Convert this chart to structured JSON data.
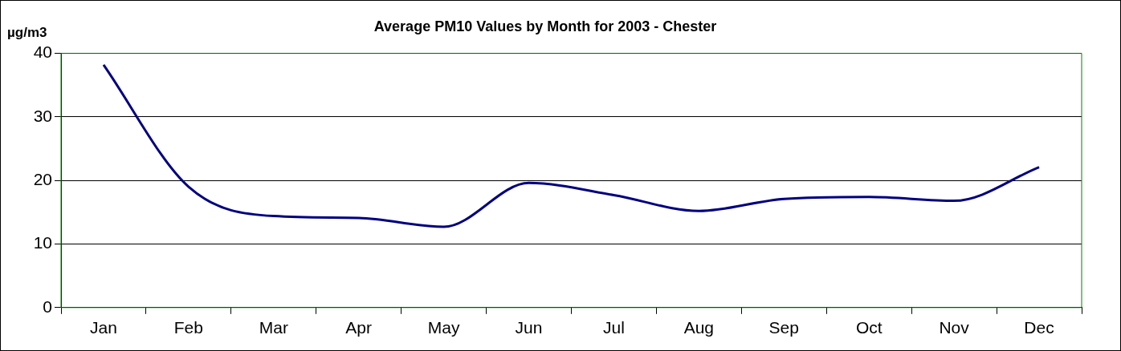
{
  "chart_data": {
    "type": "line",
    "title": "Average PM10 Values by Month for 2003 - Chester",
    "ylabel": "µg/m3",
    "categories": [
      "Jan",
      "Feb",
      "Mar",
      "Apr",
      "May",
      "Jun",
      "Jul",
      "Aug",
      "Sep",
      "Oct",
      "Nov",
      "Dec"
    ],
    "series": [
      {
        "color": "#000080",
        "values": [
          38.2,
          19.0,
          14.4,
          14.1,
          12.7,
          19.6,
          17.7,
          15.2,
          17.1,
          17.4,
          16.8,
          22.1
        ]
      }
    ],
    "ylim": [
      0,
      40
    ],
    "yticks": [
      0,
      10,
      20,
      30,
      40
    ],
    "grid": "y",
    "legend": false,
    "marker": "none",
    "line_style": "solid"
  }
}
